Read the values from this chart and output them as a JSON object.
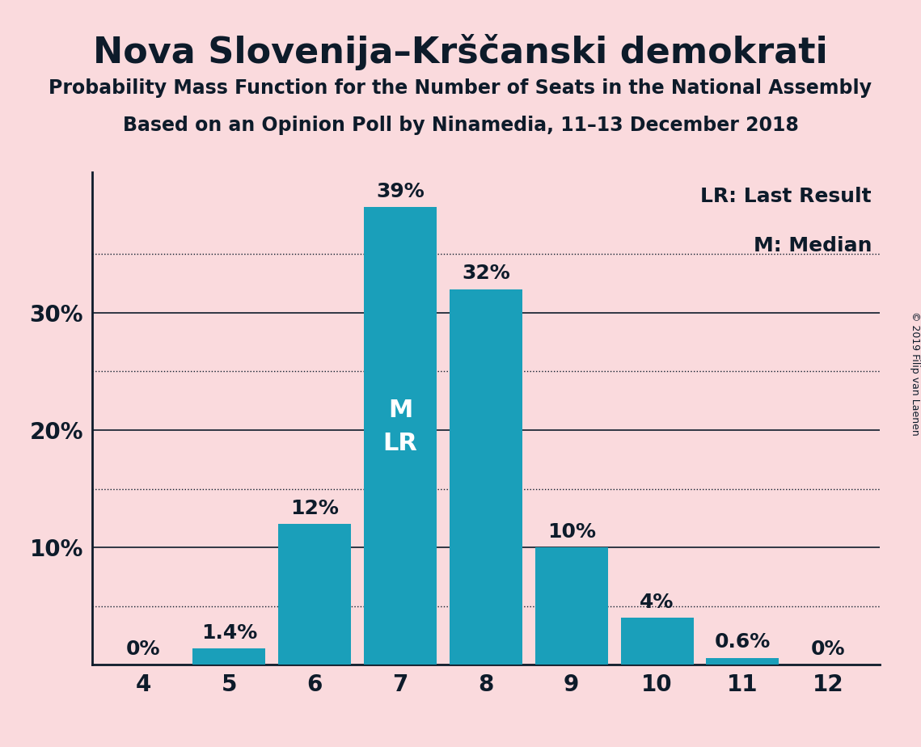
{
  "title": "Nova Slovenija–Krščanski demokrati",
  "subtitle1": "Probability Mass Function for the Number of Seats in the National Assembly",
  "subtitle2": "Based on an Opinion Poll by Ninamedia, 11–13 December 2018",
  "copyright": "© 2019 Filip van Laenen",
  "categories": [
    4,
    5,
    6,
    7,
    8,
    9,
    10,
    11,
    12
  ],
  "values": [
    0.0,
    1.4,
    12.0,
    39.0,
    32.0,
    10.0,
    4.0,
    0.6,
    0.0
  ],
  "labels": [
    "0%",
    "1.4%",
    "12%",
    "39%",
    "32%",
    "10%",
    "4%",
    "0.6%",
    "0%"
  ],
  "bar_color": "#1a9fba",
  "background_color": "#fadadd",
  "text_color": "#0d1b2a",
  "bar_label_color_inside": "#ffffff",
  "bar_label_color_outside": "#0d1b2a",
  "median_bar": 7,
  "lr_bar": 7,
  "ylim": [
    0,
    42
  ],
  "solid_grid_lines": [
    10,
    20,
    30
  ],
  "dotted_grid_lines": [
    5,
    15,
    25,
    35
  ],
  "legend_lr": "LR: Last Result",
  "legend_m": "M: Median",
  "title_fontsize": 32,
  "subtitle_fontsize": 17,
  "bar_label_fontsize": 18,
  "axis_label_fontsize": 20,
  "legend_fontsize": 18,
  "copyright_fontsize": 9
}
